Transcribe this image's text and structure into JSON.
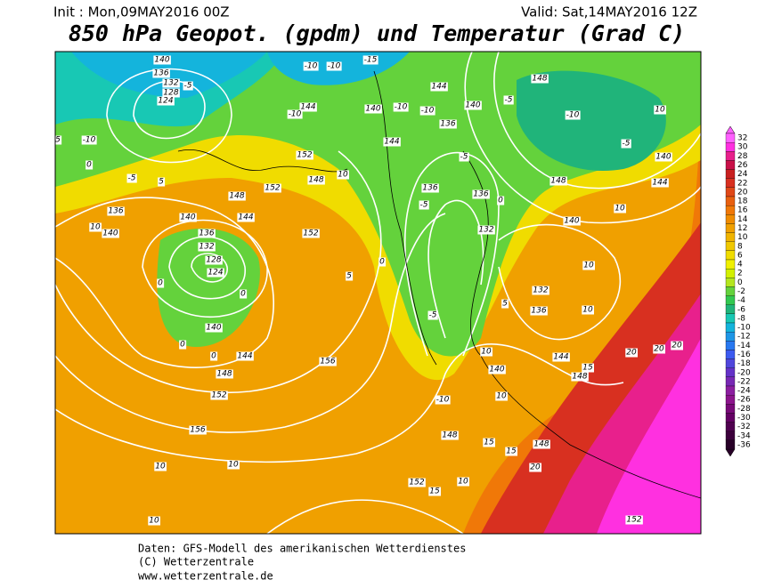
{
  "header": {
    "init": "Init : Mon,09MAY2016 00Z",
    "valid": "Valid: Sat,14MAY2016 12Z",
    "title": "850 hPa Geopot. (gpdm) und Temperatur (Grad C)"
  },
  "colorbar": {
    "levels": [
      32,
      30,
      28,
      26,
      24,
      22,
      20,
      18,
      16,
      14,
      12,
      10,
      8,
      6,
      4,
      2,
      0,
      -2,
      -4,
      -6,
      -8,
      -10,
      -12,
      -14,
      -16,
      -18,
      -20,
      -22,
      -24,
      -26,
      -28,
      -30,
      -32,
      -34,
      -36
    ],
    "colors": [
      "#ff60ff",
      "#ff30e0",
      "#e8208c",
      "#c81048",
      "#c82020",
      "#d83020",
      "#e04818",
      "#e86010",
      "#f07808",
      "#f08c00",
      "#f0a000",
      "#f0b400",
      "#f0c800",
      "#f0dc00",
      "#f0f000",
      "#d2f000",
      "#b4e61e",
      "#64d23c",
      "#32c850",
      "#20b47a",
      "#18c8b4",
      "#14b4dc",
      "#1e96e6",
      "#2878f0",
      "#3c5af0",
      "#5046dc",
      "#6432c8",
      "#7828b4",
      "#8c1ea0",
      "#8c148c",
      "#780a78",
      "#640064",
      "#500050",
      "#3c003c",
      "#280028"
    ]
  },
  "contour_labels": [
    140,
    136,
    132,
    128,
    124,
    -5,
    -10,
    0,
    5,
    -5,
    5,
    136,
    140,
    10,
    140,
    136,
    132,
    128,
    124,
    0,
    0,
    140,
    0,
    0,
    144,
    148,
    152,
    156,
    156,
    10,
    10,
    10,
    152,
    152,
    148,
    144,
    152,
    148,
    10,
    5,
    0,
    144,
    -10,
    140,
    -10,
    -10,
    144,
    144,
    136,
    140,
    -5,
    148,
    -10,
    -5,
    10,
    140,
    144,
    148,
    140,
    10,
    136,
    -5,
    -5,
    136,
    132,
    10,
    132,
    136,
    10,
    -5,
    5,
    140,
    144,
    148,
    15,
    20,
    20,
    20,
    10,
    10,
    -10,
    148,
    148,
    15,
    15,
    20,
    10,
    152,
    15,
    152,
    -15,
    -10,
    -10,
    0
  ],
  "footer": {
    "line1": "Daten: GFS-Modell des amerikanischen Wetterdienstes",
    "line2": "(C) Wetterzentrale",
    "line3": "www.wetterzentrale.de"
  }
}
